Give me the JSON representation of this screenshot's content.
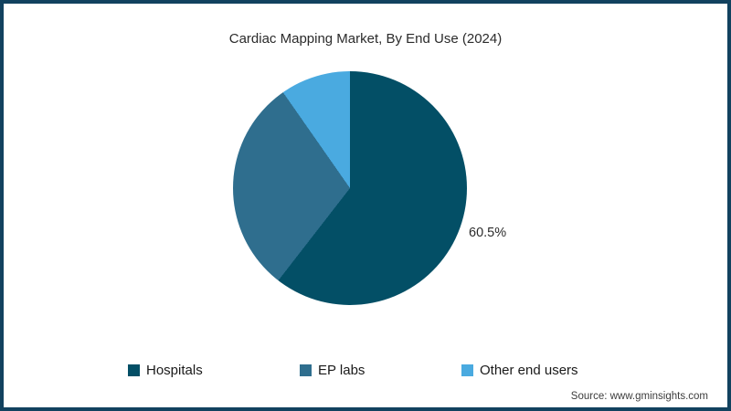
{
  "title": "Cardiac Mapping Market, By End Use (2024)",
  "chart_data": {
    "type": "pie",
    "title": "Cardiac Mapping Market, By End Use (2024)",
    "categories": [
      "Hospitals",
      "EP labs",
      "Other end users"
    ],
    "values": [
      60.5,
      29.8,
      9.7
    ],
    "colors": [
      "#034F66",
      "#2F6E8E",
      "#4AAAE0"
    ],
    "start_angle_deg": 0,
    "direction": "clockwise",
    "data_labels": [
      {
        "category": "Hospitals",
        "text": "60.5%",
        "position": "outside-right"
      }
    ],
    "legend_position": "bottom",
    "background": "#ffffff"
  },
  "frame": {
    "border_color": "#12425F"
  },
  "source": "Source: www.gminsights.com"
}
